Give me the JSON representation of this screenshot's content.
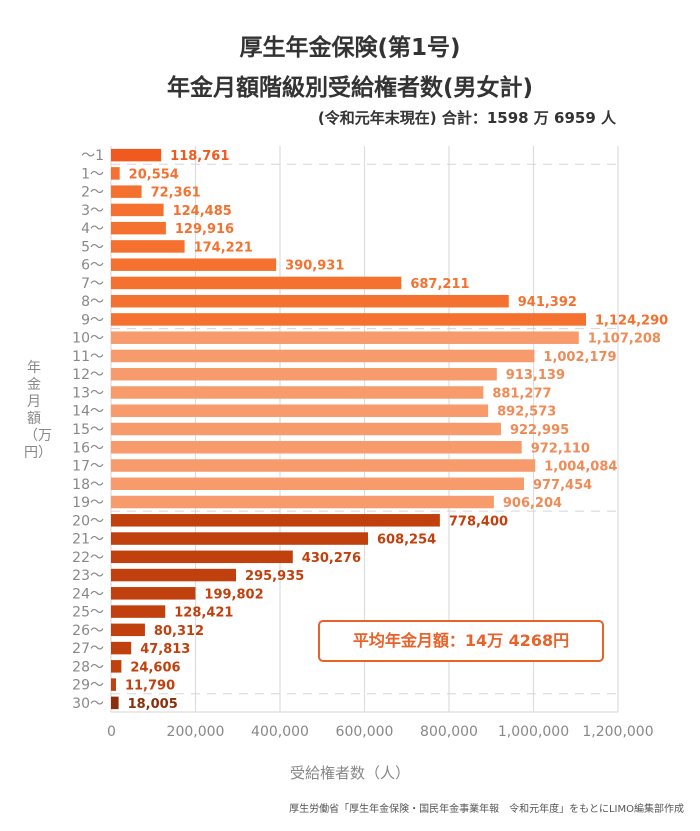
{
  "title_line1": "厚生年金保険(第1号)",
  "title_line2": "年金月額階級別受給権者数(男女計)",
  "subtitle": "(令和元年末現在) 合計：1598 万 6959 人",
  "y_axis_title": "年金月額（万円）",
  "average_box": "平均年金月額：14万 4268円",
  "source": "厚生労働省「厚生年金保険・国民年金事業年報　令和元年度」をもとにLIMO編集部作成",
  "colors": {
    "first": "#f05a1e",
    "low": "#f4712f",
    "mid": "#f79b6c",
    "high": "#c0400e",
    "top": "#8b2e0a",
    "grid": "#dddddd",
    "axis_text": "#888888"
  },
  "chart_data": {
    "type": "bar",
    "orientation": "horizontal",
    "title": "厚生年金保険(第1号) 年金月額階級別受給権者数(男女計)",
    "xlabel": "受給権者数（人）",
    "ylabel": "年金月額（万円）",
    "xlim": [
      0,
      1200000
    ],
    "x_ticks": [
      "0",
      "200,000",
      "400,000",
      "600,000",
      "800,000",
      "1,000,000",
      "1,200,000"
    ],
    "x_tick_values": [
      0,
      200000,
      400000,
      600000,
      800000,
      1000000,
      1200000
    ],
    "grid": true,
    "categories": [
      "～1",
      "1～",
      "2～",
      "3～",
      "4～",
      "5～",
      "6～",
      "7～",
      "8～",
      "9～",
      "10～",
      "11～",
      "12～",
      "13～",
      "14～",
      "15～",
      "16～",
      "17～",
      "18～",
      "19～",
      "20～",
      "21～",
      "22～",
      "23～",
      "24～",
      "25～",
      "26～",
      "27～",
      "28～",
      "29～",
      "30～"
    ],
    "values": [
      118761,
      20554,
      72361,
      124485,
      129916,
      174221,
      390931,
      687211,
      941392,
      1124290,
      1107208,
      1002179,
      913139,
      881277,
      892573,
      922995,
      972110,
      1004084,
      977454,
      906204,
      778400,
      608254,
      430276,
      295935,
      199802,
      128421,
      80312,
      47813,
      24606,
      11790,
      18005
    ],
    "labels": [
      "118,761",
      "20,554",
      "72,361",
      "124,485",
      "129,916",
      "174,221",
      "390,931",
      "687,211",
      "941,392",
      "1,124,290",
      "1,107,208",
      "1,002,179",
      "913,139",
      "881,277",
      "892,573",
      "922,995",
      "972,110",
      "1,004,084",
      "977,454",
      "906,204",
      "778,400",
      "608,254",
      "430,276",
      "295,935",
      "199,802",
      "128,421",
      "80,312",
      "47,813",
      "24,606",
      "11,790",
      "18,005"
    ],
    "groups": [
      "first",
      "low",
      "low",
      "low",
      "low",
      "low",
      "low",
      "low",
      "low",
      "low",
      "mid",
      "mid",
      "mid",
      "mid",
      "mid",
      "mid",
      "mid",
      "mid",
      "mid",
      "mid",
      "high",
      "high",
      "high",
      "high",
      "high",
      "high",
      "high",
      "high",
      "high",
      "high",
      "top"
    ],
    "dashed_separators_after": [
      0,
      9,
      19,
      29
    ]
  }
}
